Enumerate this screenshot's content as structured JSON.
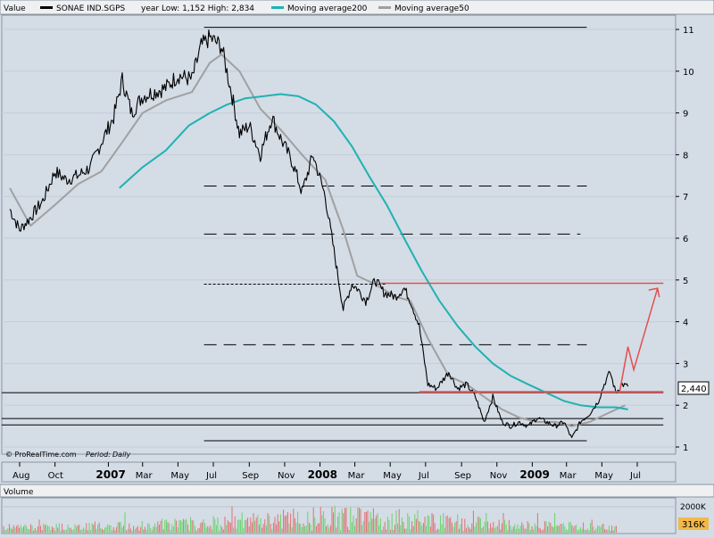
{
  "header": {
    "value_label": "Value",
    "series_name": "SONAE IND.SGPS",
    "range_text": "year Low: 1,152 High: 2,834",
    "ma200_label": "Moving average200",
    "ma50_label": "Moving average50"
  },
  "footer": {
    "source": "© ProRealTime.com",
    "period_label": "Period:",
    "period_value": "Daily"
  },
  "volume_panel": {
    "title": "Volume",
    "tick_label": "2000K",
    "current_volume": "316K"
  },
  "last_price_label": "2,440",
  "colors": {
    "background": "#d4dce6",
    "price": "#000000",
    "ma200": "#1fb2b2",
    "ma50": "#a0a0a0",
    "annotation": "#e05050",
    "volume_up": "#6ad26a",
    "volume_down": "#e07070"
  },
  "chart_data": {
    "type": "line",
    "title": "SONAE IND.SGPS",
    "ylim": [
      0.8,
      11.4
    ],
    "grid": true,
    "x_tick_labels": [
      "Aug",
      "Oct",
      "2007",
      "Mar",
      "May",
      "Jul",
      "Sep",
      "Nov",
      "2008",
      "Mar",
      "May",
      "Jul",
      "Sep",
      "Nov",
      "2009",
      "Mar",
      "May",
      "Jul"
    ],
    "y_tick_labels": [
      "1",
      "2",
      "3",
      "4",
      "5",
      "6",
      "7",
      "8",
      "9",
      "10",
      "11"
    ],
    "y_ticks": [
      1,
      2,
      3,
      4,
      5,
      6,
      7,
      8,
      9,
      10,
      11
    ],
    "series": [
      {
        "name": "SONAE IND.SGPS",
        "color": "#000000",
        "x": [
          "2006-07-15",
          "2006-08-01",
          "2006-08-20",
          "2006-09-10",
          "2006-10-01",
          "2006-10-20",
          "2006-11-10",
          "2006-12-01",
          "2006-12-20",
          "2007-01-10",
          "2007-01-25",
          "2007-02-10",
          "2007-03-01",
          "2007-03-20",
          "2007-04-10",
          "2007-05-01",
          "2007-05-25",
          "2007-06-10",
          "2007-06-25",
          "2007-07-05",
          "2007-07-15",
          "2007-08-01",
          "2007-08-15",
          "2007-09-01",
          "2007-09-20",
          "2007-10-10",
          "2007-10-25",
          "2007-11-15",
          "2007-12-01",
          "2007-12-20",
          "2008-01-10",
          "2008-01-25",
          "2008-02-10",
          "2008-02-25",
          "2008-03-05",
          "2008-03-20",
          "2008-04-05",
          "2008-04-20",
          "2008-05-10",
          "2008-05-25",
          "2008-06-05",
          "2008-06-20",
          "2008-07-05",
          "2008-07-20",
          "2008-08-10",
          "2008-08-25",
          "2008-09-10",
          "2008-09-25",
          "2008-10-10",
          "2008-10-25",
          "2008-11-10",
          "2008-11-25",
          "2008-12-10",
          "2008-12-25",
          "2009-01-10",
          "2009-01-25",
          "2009-02-10",
          "2009-02-25",
          "2009-03-10",
          "2009-03-25",
          "2009-04-10",
          "2009-04-25",
          "2009-05-05",
          "2009-05-15",
          "2009-05-25",
          "2009-06-05",
          "2009-06-15"
        ],
        "values": [
          6.7,
          6.2,
          6.5,
          6.9,
          7.6,
          7.4,
          7.5,
          7.7,
          8.3,
          8.9,
          9.8,
          9.0,
          9.4,
          9.5,
          9.6,
          9.9,
          9.8,
          10.6,
          10.8,
          10.7,
          10.6,
          9.5,
          8.5,
          8.7,
          8.0,
          8.9,
          8.4,
          7.8,
          7.1,
          8.0,
          7.0,
          5.7,
          4.3,
          4.9,
          4.8,
          4.5,
          5.0,
          4.7,
          4.6,
          4.8,
          4.5,
          3.9,
          2.5,
          2.4,
          2.8,
          2.4,
          2.5,
          2.2,
          1.6,
          2.2,
          1.6,
          1.5,
          1.6,
          1.5,
          1.7,
          1.6,
          1.5,
          1.6,
          1.2,
          1.6,
          1.8,
          2.1,
          2.5,
          2.8,
          2.3,
          2.5,
          2.45
        ]
      },
      {
        "name": "Moving average50",
        "color": "#a0a0a0",
        "x": [
          "2006-07-15",
          "2006-08-20",
          "2006-10-01",
          "2006-11-10",
          "2006-12-20",
          "2007-01-25",
          "2007-03-01",
          "2007-04-10",
          "2007-05-25",
          "2007-06-25",
          "2007-07-15",
          "2007-08-15",
          "2007-09-20",
          "2007-10-25",
          "2007-12-01",
          "2008-01-10",
          "2008-02-10",
          "2008-03-05",
          "2008-04-05",
          "2008-05-10",
          "2008-06-05",
          "2008-07-05",
          "2008-08-10",
          "2008-09-10",
          "2008-10-10",
          "2008-11-10",
          "2008-12-10",
          "2009-01-10",
          "2009-02-10",
          "2009-03-10",
          "2009-04-10",
          "2009-05-10",
          "2009-06-10"
        ],
        "values": [
          7.2,
          6.3,
          6.8,
          7.3,
          7.6,
          8.3,
          9.0,
          9.3,
          9.5,
          10.2,
          10.4,
          10.0,
          9.1,
          8.6,
          8.0,
          7.4,
          6.2,
          5.1,
          4.9,
          4.6,
          4.5,
          3.6,
          2.7,
          2.5,
          2.2,
          1.9,
          1.7,
          1.6,
          1.6,
          1.5,
          1.6,
          1.8,
          2.0
        ]
      },
      {
        "name": "Moving average200",
        "color": "#1fb2b2",
        "x": [
          "2007-01-20",
          "2007-03-01",
          "2007-04-10",
          "2007-05-20",
          "2007-06-25",
          "2007-07-25",
          "2007-08-25",
          "2007-09-25",
          "2007-10-25",
          "2007-11-25",
          "2007-12-25",
          "2008-01-25",
          "2008-02-25",
          "2008-03-25",
          "2008-04-25",
          "2008-05-25",
          "2008-06-25",
          "2008-07-25",
          "2008-08-25",
          "2008-09-25",
          "2008-10-25",
          "2008-11-25",
          "2008-12-25",
          "2009-01-25",
          "2009-02-25",
          "2009-03-25",
          "2009-04-25",
          "2009-05-25",
          "2009-06-15"
        ],
        "values": [
          7.2,
          7.7,
          8.1,
          8.7,
          9.0,
          9.2,
          9.35,
          9.4,
          9.45,
          9.4,
          9.2,
          8.8,
          8.2,
          7.5,
          6.8,
          6.0,
          5.2,
          4.5,
          3.9,
          3.4,
          3.0,
          2.7,
          2.5,
          2.3,
          2.1,
          2.0,
          1.95,
          1.95,
          1.9
        ]
      }
    ],
    "reference_lines": [
      {
        "style": "solid",
        "y": 11.05,
        "x_start": "2007-06-15",
        "x_end": "2009-04-05"
      },
      {
        "style": "dashed",
        "y": 7.25,
        "x_start": "2007-06-15",
        "x_end": "2009-04-05"
      },
      {
        "style": "dashed",
        "y": 6.1,
        "x_start": "2007-06-15",
        "x_end": "2009-03-25"
      },
      {
        "style": "dotted",
        "y": 4.9,
        "x_start": "2007-06-15",
        "x_end": "2008-04-25"
      },
      {
        "style": "dashed",
        "y": 3.45,
        "x_start": "2007-06-15",
        "x_end": "2009-04-05"
      },
      {
        "style": "solid",
        "y": 1.15,
        "x_start": "2007-06-15",
        "x_end": "2009-04-05"
      },
      {
        "style": "solid",
        "y": 2.3,
        "x_start": "2006-07-01",
        "x_end": "2009-08-15"
      },
      {
        "style": "solid",
        "y": 1.68,
        "x_start": "2006-07-01",
        "x_end": "2009-08-15"
      },
      {
        "style": "solid",
        "y": 1.53,
        "x_start": "2006-07-01",
        "x_end": "2009-08-15"
      }
    ],
    "annotations": [
      {
        "type": "resistance_line",
        "color": "#e05050",
        "y": 4.92,
        "x_start": "2008-04-15",
        "x_end": "2009-08-15"
      },
      {
        "type": "support_line",
        "color": "#e05050",
        "y": 2.32,
        "x_start": "2008-06-20",
        "x_end": "2009-08-15"
      },
      {
        "type": "arrow_path",
        "color": "#e05050",
        "x": [
          "2009-06-01",
          "2009-06-15",
          "2009-06-25",
          "2009-08-05"
        ],
        "y": [
          2.35,
          3.4,
          2.85,
          4.8
        ]
      }
    ],
    "volume": {
      "ylabel_tick": "2000K",
      "note": "daily volume bars, green for up days and red for down days"
    }
  }
}
